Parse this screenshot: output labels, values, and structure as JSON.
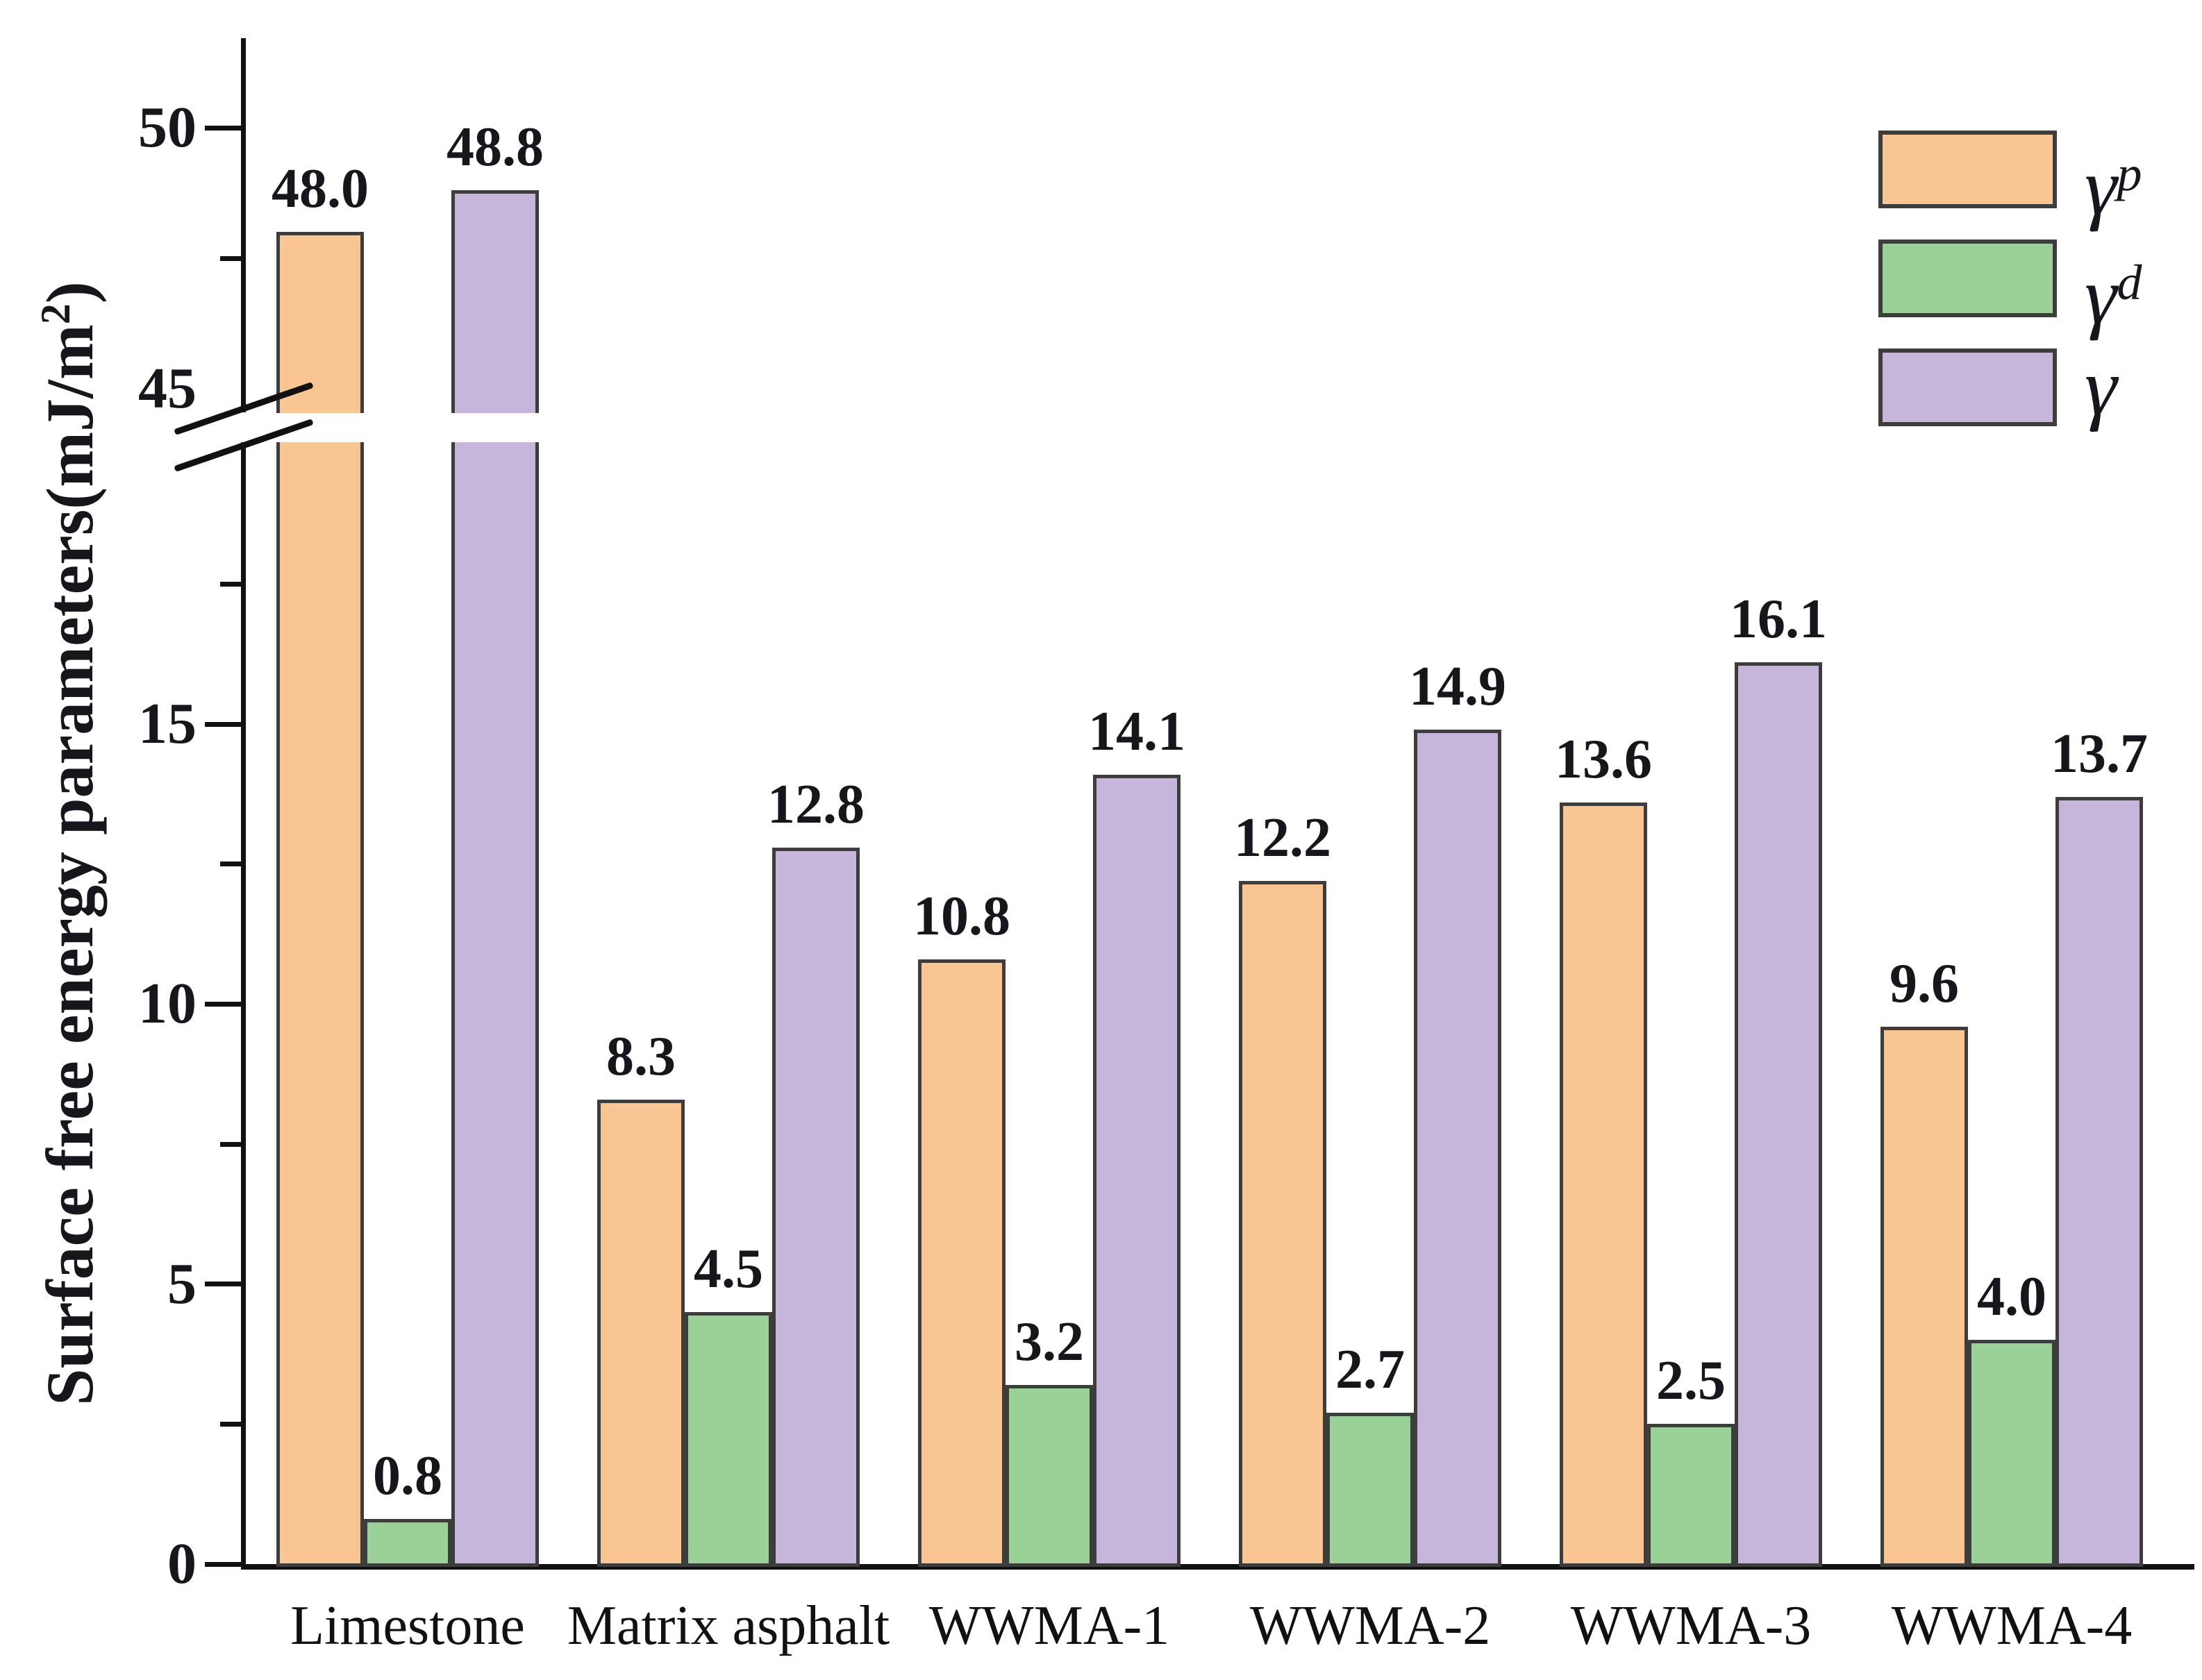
{
  "chart_data": {
    "type": "bar",
    "title": "",
    "ylabel": {
      "prefix": "Surface free energy parameters(mJ/m",
      "sup": "2",
      "suffix": ")"
    },
    "categories": [
      "Limestone",
      "Matrix asphalt",
      "WWMA-1",
      "WWMA-2",
      "WWMA-3",
      "WWMA-4"
    ],
    "series": [
      {
        "name": "gamma-p",
        "legend": {
          "base": "γ",
          "sup": "p"
        },
        "color": "#F9C593",
        "values": [
          48.0,
          8.3,
          10.8,
          12.2,
          13.6,
          9.6
        ],
        "labels": [
          "48.0",
          "8.3",
          "10.8",
          "12.2",
          "13.6",
          "9.6"
        ]
      },
      {
        "name": "gamma-d",
        "legend": {
          "base": "γ",
          "sup": "d"
        },
        "color": "#9AD197",
        "values": [
          0.8,
          4.5,
          3.2,
          2.7,
          2.5,
          4.0
        ],
        "labels": [
          "0.8",
          "4.5",
          "3.2",
          "2.7",
          "2.5",
          "4.0"
        ]
      },
      {
        "name": "gamma",
        "legend": {
          "base": "γ",
          "sup": ""
        },
        "color": "#C6B6DB",
        "values": [
          48.8,
          12.8,
          14.1,
          14.9,
          16.1,
          13.7
        ],
        "labels": [
          "48.8",
          "12.8",
          "14.1",
          "14.9",
          "16.1",
          "13.7"
        ]
      }
    ],
    "y_axis": {
      "axis_break": true,
      "range_bottom": [
        0,
        20
      ],
      "range_top": [
        45,
        51.5
      ],
      "ticks_bottom": [
        {
          "v": 0,
          "label": "0"
        },
        {
          "v": 5,
          "label": "5"
        },
        {
          "v": 10,
          "label": "10"
        },
        {
          "v": 15,
          "label": "15"
        }
      ],
      "minor_bottom": [
        2.5,
        7.5,
        12.5,
        17.5
      ],
      "break_label": {
        "v": 45,
        "label": "45"
      },
      "ticks_top": [
        {
          "v": 50,
          "label": "50"
        }
      ],
      "minor_top": [
        47.5
      ]
    },
    "legend_position": "top-right",
    "grid": false,
    "xlabel": "",
    "bar_border_color": "#3d3d3d",
    "axis_color": "#111111",
    "text_color": "#16161c"
  }
}
